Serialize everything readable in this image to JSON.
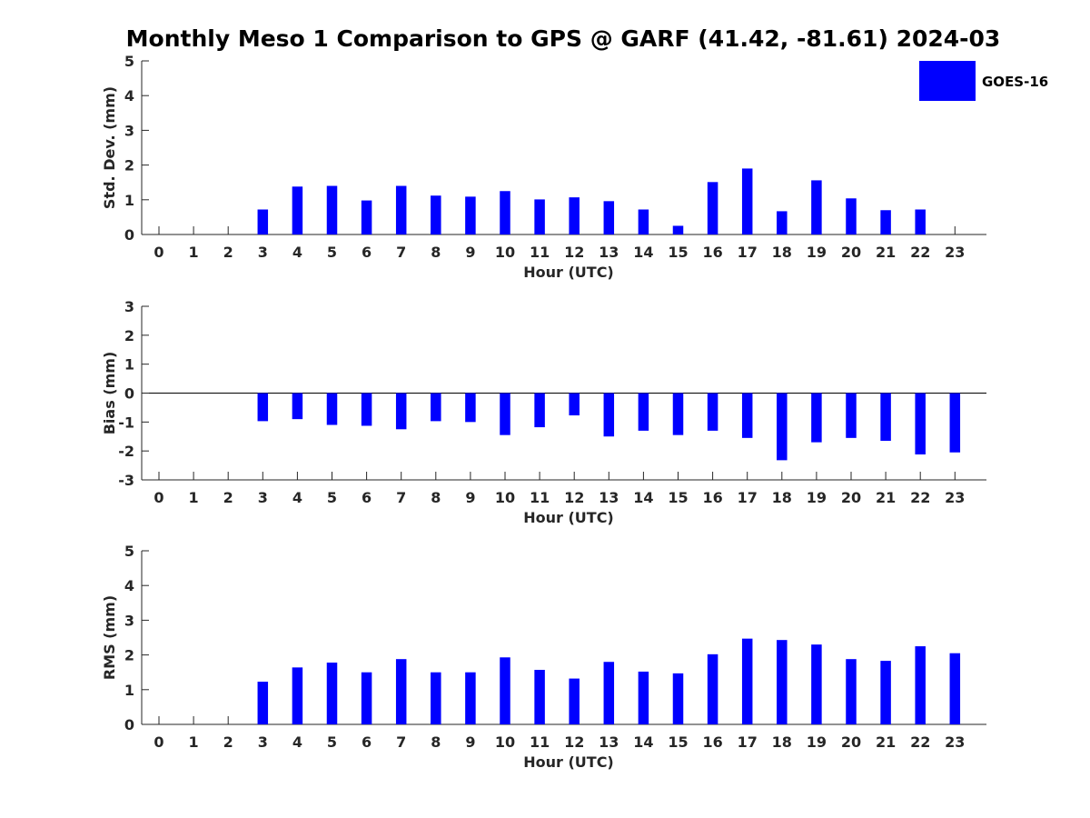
{
  "title": "Monthly Meso 1 Comparison to GPS @ GARF (41.42, -81.61) 2024-03",
  "legend": {
    "label": "GOES-16",
    "color": "#0000ff",
    "position": "top-right"
  },
  "chart_data": [
    {
      "type": "bar",
      "xlabel": "Hour (UTC)",
      "ylabel": "Std. Dev. (mm)",
      "ylim": [
        0,
        5
      ],
      "yticks": [
        "0",
        "1",
        "2",
        "3",
        "4",
        "5"
      ],
      "categories": [
        "0",
        "1",
        "2",
        "3",
        "4",
        "5",
        "6",
        "7",
        "8",
        "9",
        "10",
        "11",
        "12",
        "13",
        "14",
        "15",
        "16",
        "17",
        "18",
        "19",
        "20",
        "21",
        "22",
        "23"
      ],
      "series": [
        {
          "name": "GOES-16",
          "values": [
            null,
            null,
            null,
            0.72,
            1.38,
            1.4,
            0.98,
            1.4,
            1.12,
            1.09,
            1.25,
            1.01,
            1.07,
            0.96,
            0.72,
            0.25,
            1.51,
            1.9,
            0.67,
            1.56,
            1.04,
            0.7,
            0.72,
            null
          ]
        }
      ]
    },
    {
      "type": "bar",
      "xlabel": "Hour (UTC)",
      "ylabel": "Bias (mm)",
      "ylim": [
        -3,
        3
      ],
      "yticks": [
        "-3",
        "-2",
        "-1",
        "0",
        "1",
        "2",
        "3"
      ],
      "categories": [
        "0",
        "1",
        "2",
        "3",
        "4",
        "5",
        "6",
        "7",
        "8",
        "9",
        "10",
        "11",
        "12",
        "13",
        "14",
        "15",
        "16",
        "17",
        "18",
        "19",
        "20",
        "21",
        "22",
        "23"
      ],
      "series": [
        {
          "name": "GOES-16",
          "values": [
            null,
            null,
            null,
            -0.97,
            -0.9,
            -1.1,
            -1.13,
            -1.25,
            -0.97,
            -1.0,
            -1.45,
            -1.18,
            -0.77,
            -1.5,
            -1.3,
            -1.45,
            -1.3,
            -1.55,
            -2.32,
            -1.7,
            -1.55,
            -1.65,
            -2.12,
            -2.05
          ]
        }
      ]
    },
    {
      "type": "bar",
      "xlabel": "Hour (UTC)",
      "ylabel": "RMS (mm)",
      "ylim": [
        0,
        5
      ],
      "yticks": [
        "0",
        "1",
        "2",
        "3",
        "4",
        "5"
      ],
      "categories": [
        "0",
        "1",
        "2",
        "3",
        "4",
        "5",
        "6",
        "7",
        "8",
        "9",
        "10",
        "11",
        "12",
        "13",
        "14",
        "15",
        "16",
        "17",
        "18",
        "19",
        "20",
        "21",
        "22",
        "23"
      ],
      "series": [
        {
          "name": "GOES-16",
          "values": [
            null,
            null,
            null,
            1.23,
            1.64,
            1.78,
            1.5,
            1.88,
            1.5,
            1.5,
            1.93,
            1.57,
            1.32,
            1.8,
            1.52,
            1.47,
            2.02,
            2.47,
            2.43,
            2.3,
            1.88,
            1.83,
            2.25,
            2.05
          ]
        }
      ]
    }
  ]
}
